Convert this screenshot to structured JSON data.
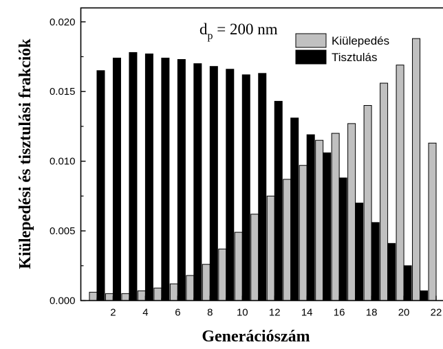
{
  "chart_data": {
    "type": "bar",
    "title": "",
    "xlabel": "Generációszám",
    "ylabel": "Kiülepedési és tisztulási frakciók",
    "xlim": [
      0,
      23
    ],
    "ylim": [
      0,
      0.021
    ],
    "x_ticks": [
      2,
      4,
      6,
      8,
      10,
      12,
      14,
      16,
      18,
      20,
      22
    ],
    "x_tick_labels": [
      "2",
      "4",
      "6",
      "8",
      "10",
      "12",
      "14",
      "16",
      "18",
      "20",
      "22"
    ],
    "y_ticks": [
      0.0,
      0.005,
      0.01,
      0.015,
      0.02
    ],
    "y_tick_labels": [
      "0.000",
      "0.005",
      "0.010",
      "0.015",
      "0.020"
    ],
    "x": [
      1,
      2,
      3,
      4,
      5,
      6,
      7,
      8,
      9,
      10,
      11,
      12,
      13,
      14,
      15,
      16,
      17,
      18,
      19,
      20,
      21,
      22
    ],
    "series": [
      {
        "name": "Kiülepedés",
        "color": "#c0c0c0",
        "values": [
          0.0006,
          0.0005,
          0.0005,
          0.0007,
          0.0009,
          0.0012,
          0.0018,
          0.0026,
          0.0037,
          0.0049,
          0.0062,
          0.0075,
          0.0087,
          0.0097,
          0.0115,
          0.012,
          0.0127,
          0.014,
          0.0156,
          0.0169,
          0.0188,
          0.0113
        ]
      },
      {
        "name": "Tisztulás",
        "color": "#000000",
        "values": [
          0.0165,
          0.0174,
          0.0178,
          0.0177,
          0.0174,
          0.0173,
          0.017,
          0.0168,
          0.0166,
          0.0162,
          0.0163,
          0.0143,
          0.0131,
          0.0119,
          0.0106,
          0.0088,
          0.007,
          0.0056,
          0.0041,
          0.0025,
          0.0007,
          0
        ]
      }
    ],
    "annotation": {
      "main": "d",
      "sub": "p",
      "rest": " = 200 nm"
    },
    "legend_position": "top-right",
    "grid": false
  }
}
